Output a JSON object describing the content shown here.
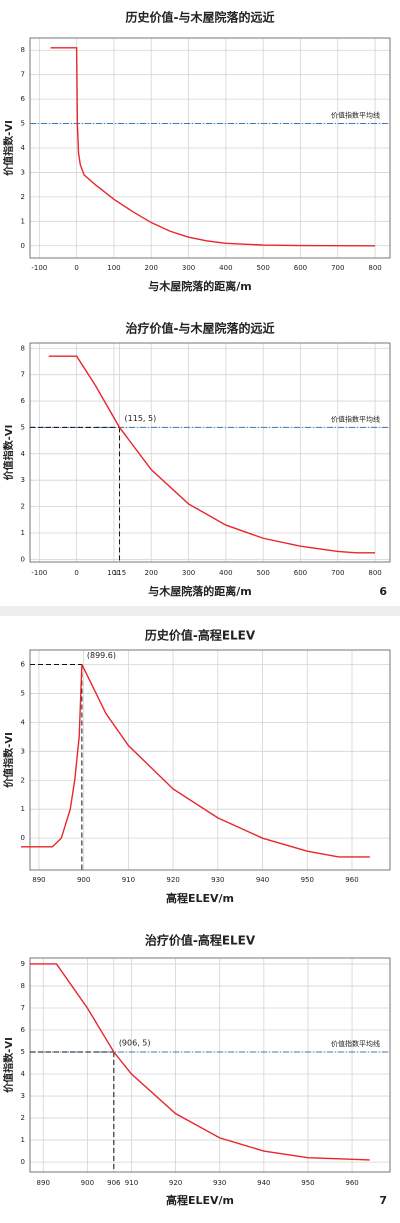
{
  "chart_data": [
    {
      "type": "line",
      "title": "历史价值-与木屋院落的远近",
      "x_label": "与木屋院落的距离/m",
      "y_label": "价值指数-VI",
      "x": [
        -70,
        0,
        2,
        5,
        10,
        20,
        50,
        100,
        150,
        200,
        250,
        300,
        350,
        400,
        500,
        600,
        800
      ],
      "series": [
        {
          "color": "#e8262b",
          "values": [
            8.1,
            8.1,
            5,
            3.8,
            3.3,
            2.9,
            2.5,
            1.9,
            1.4,
            0.95,
            0.6,
            0.35,
            0.2,
            0.1,
            0.03,
            0.01,
            0
          ]
        }
      ],
      "xlim": [
        -125,
        840
      ],
      "ylim": [
        -0.5,
        8.5
      ],
      "xticks": [
        -100,
        0,
        100,
        200,
        300,
        400,
        500,
        600,
        700,
        800
      ],
      "yticks": [
        0,
        1,
        2,
        3,
        4,
        5,
        6,
        7,
        8
      ],
      "grid": true,
      "reference_line": {
        "value": 5,
        "label": "价值指数平均线",
        "color": "#3a7bbf"
      }
    },
    {
      "type": "line",
      "title": "治疗价值-与木屋院落的远近",
      "x_label": "与木屋院落的距离/m",
      "y_label": "价值指数-VI",
      "page_number": "6",
      "x": [
        -75,
        0,
        50,
        115,
        200,
        300,
        400,
        500,
        600,
        700,
        750,
        800
      ],
      "series": [
        {
          "color": "#e8262b",
          "values": [
            7.7,
            7.7,
            6.6,
            5,
            3.4,
            2.1,
            1.3,
            0.8,
            0.5,
            0.3,
            0.25,
            0.25
          ]
        }
      ],
      "xlim": [
        -125,
        840
      ],
      "ylim": [
        -0.1,
        8.2
      ],
      "xticks": [
        -100,
        0,
        100,
        115,
        200,
        300,
        400,
        500,
        600,
        700,
        800
      ],
      "yticks": [
        0,
        1,
        2,
        3,
        4,
        5,
        6,
        7,
        8
      ],
      "grid": true,
      "reference_line": {
        "value": 5,
        "label": "价值指数平均线",
        "color": "#3a7bbf"
      },
      "annotation": {
        "x": 115,
        "y": 5,
        "label": "(115, 5)"
      }
    },
    {
      "type": "line",
      "title": "历史价值-高程ELEV",
      "x_label": "高程ELEV/m",
      "y_label": "价值指数-VI",
      "x": [
        886,
        893,
        895,
        897,
        898,
        899,
        899.6,
        905,
        910,
        920,
        930,
        940,
        950,
        957,
        964
      ],
      "series": [
        {
          "color": "#e8262b",
          "values": [
            -0.3,
            -0.3,
            0,
            1,
            2,
            3.5,
            6,
            4.3,
            3.2,
            1.7,
            0.7,
            0,
            -0.45,
            -0.65,
            -0.65
          ]
        }
      ],
      "xlim": [
        888,
        968.5
      ],
      "ylim": [
        -1.1,
        6.5
      ],
      "xticks": [
        890,
        900,
        910,
        920,
        930,
        940,
        950,
        960
      ],
      "yticks": [
        0,
        1,
        2,
        3,
        4,
        5,
        6
      ],
      "grid": true,
      "annotation": {
        "x": 899.6,
        "y": 6,
        "label": "(899.6)"
      }
    },
    {
      "type": "line",
      "title": "治疗价值-高程ELEV",
      "x_label": "高程ELEV/m",
      "y_label": "价值指数-VI",
      "page_number": "7",
      "x": [
        887,
        893,
        900,
        906,
        910,
        920,
        930,
        940,
        950,
        964
      ],
      "series": [
        {
          "color": "#e8262b",
          "values": [
            9,
            9,
            7,
            5,
            4,
            2.2,
            1.1,
            0.5,
            0.2,
            0.1
          ]
        }
      ],
      "xlim": [
        887,
        968.6
      ],
      "ylim": [
        -0.45,
        9.27
      ],
      "xticks": [
        890,
        900,
        906,
        910,
        920,
        930,
        940,
        950,
        960
      ],
      "yticks": [
        0,
        1,
        2,
        3,
        4,
        5,
        6,
        7,
        8,
        9
      ],
      "grid": true,
      "reference_line": {
        "value": 5,
        "label": "价值指数平均线",
        "color": "#3a7bbf"
      },
      "annotation": {
        "x": 906,
        "y": 5,
        "label": "(906, 5)"
      }
    }
  ]
}
